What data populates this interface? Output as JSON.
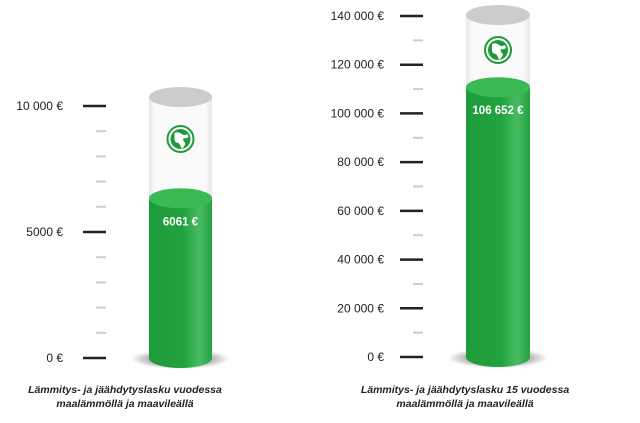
{
  "chart_data": [
    {
      "type": "bar",
      "style": "cylinder-gauge",
      "ylim": [
        0,
        10000
      ],
      "major_ticks": [
        0,
        5000,
        10000
      ],
      "tick_labels": [
        "0 €",
        "5000 €",
        "10 000 €"
      ],
      "minor_step": 1000,
      "value": 6061,
      "value_label": "6061 €",
      "icon": "globe-icon",
      "caption_line1": "Lämmitys- ja jäähdytyslasku vuodessa",
      "caption_line2": "maalämmöllä ja maavileällä"
    },
    {
      "type": "bar",
      "style": "cylinder-gauge",
      "ylim": [
        0,
        140000
      ],
      "major_ticks": [
        0,
        20000,
        40000,
        60000,
        80000,
        100000,
        120000,
        140000
      ],
      "tick_labels": [
        "0 €",
        "20 000 €",
        "40 000 €",
        "60 000 €",
        "80 000 €",
        "100 000 €",
        "120 000 €",
        "140 000 €"
      ],
      "minor_step": 10000,
      "value": 106652,
      "value_label": "106 652 €",
      "icon": "globe-icon",
      "caption_line1": "Lämmitys- ja jäähdytyslasku 15 vuodessa",
      "caption_line2": "maalämmöllä ja maavileällä"
    }
  ],
  "colors": {
    "fill": "#23a23f",
    "fill_light": "#3dbb58",
    "cap": "#cccccc",
    "icon": "#1f9a3b",
    "tick_major": "#222222",
    "tick_minor": "#cccccc"
  }
}
